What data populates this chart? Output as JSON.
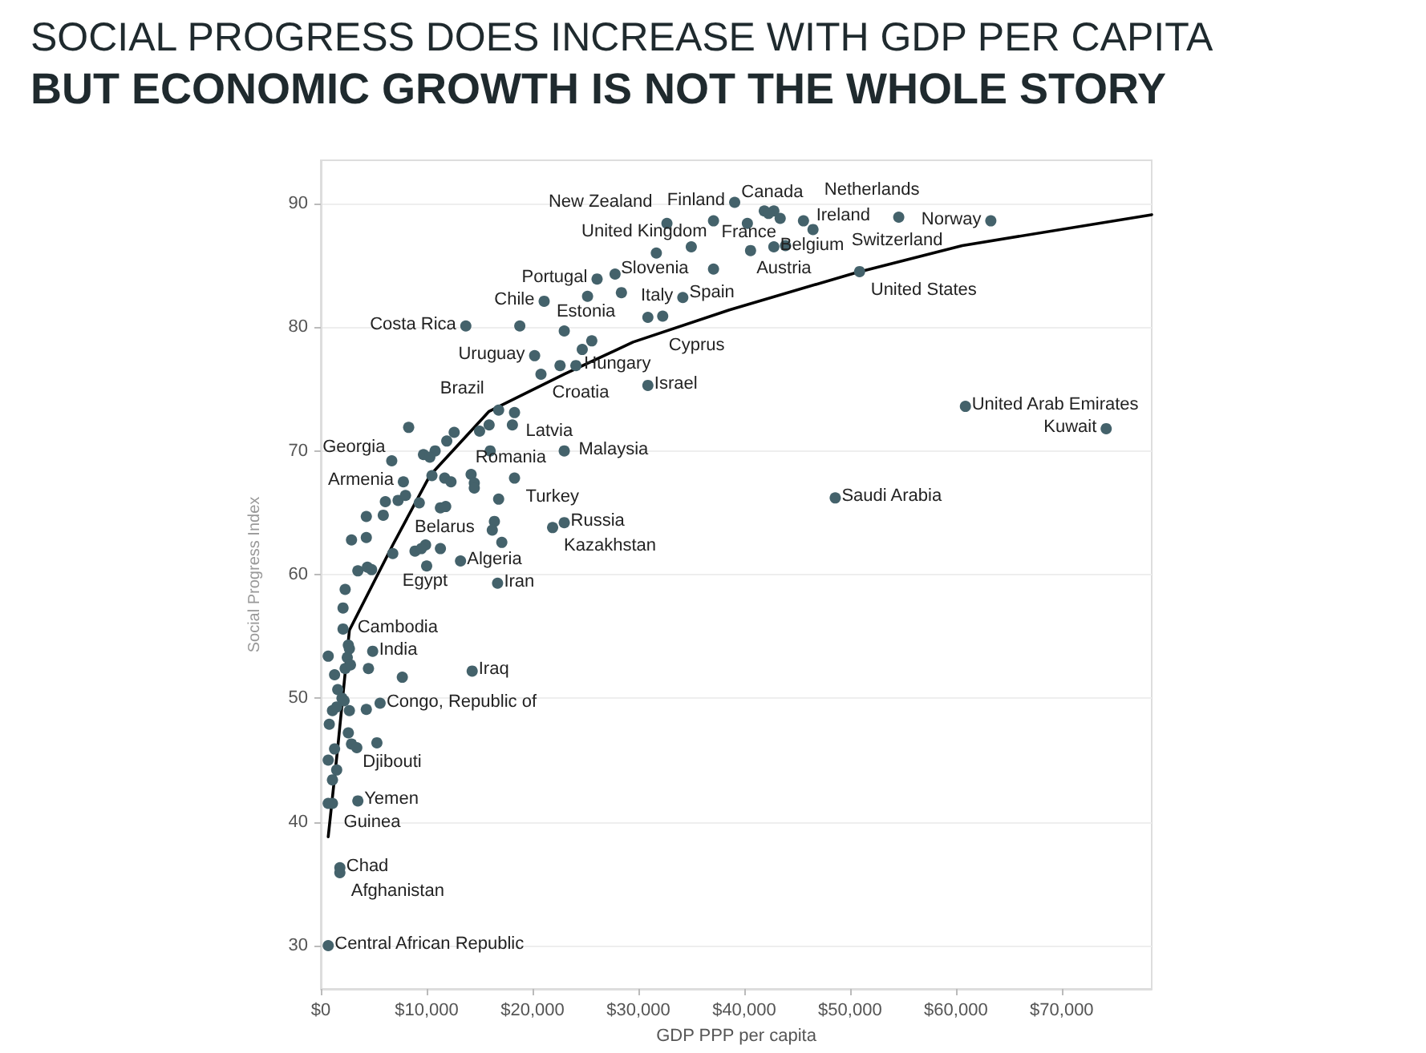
{
  "chart_data": {
    "type": "scatter",
    "title": "SOCIAL PROGRESS DOES INCREASE WITH GDP PER CAPITA",
    "subtitle": "BUT ECONOMIC GROWTH IS NOT THE WHOLE STORY",
    "xlabel": "GDP PPP per capita",
    "ylabel": "Social Progress Index",
    "xlim": [
      0,
      78500
    ],
    "ylim": [
      26.5,
      93.5
    ],
    "xticks": [
      {
        "value": 0,
        "label": "$0"
      },
      {
        "value": 10000,
        "label": "$10,000"
      },
      {
        "value": 20000,
        "label": "$20,000"
      },
      {
        "value": 30000,
        "label": "$30,000"
      },
      {
        "value": 40000,
        "label": "$40,000"
      },
      {
        "value": 50000,
        "label": "$50,000"
      },
      {
        "value": 60000,
        "label": "$60,000"
      },
      {
        "value": 70000,
        "label": "$70,000"
      }
    ],
    "yticks": [
      30,
      40,
      50,
      60,
      70,
      80,
      90
    ],
    "grid": "y",
    "marker": "circle",
    "series": [
      {
        "color": "#44626b",
        "x": [
          39100,
          42800,
          37100,
          45600,
          63300,
          32700,
          54600,
          31700,
          43900,
          46500,
          37100,
          42800,
          40600,
          26100,
          34200,
          21100,
          50900,
          25200,
          13700,
          30900,
          20200,
          20800,
          22600,
          30900,
          18300,
          16800,
          18100,
          60900,
          6700,
          23000,
          74200,
          18300,
          7800,
          16800,
          48600,
          23000,
          21900,
          13200,
          10000,
          16700,
          2100,
          4900,
          14300,
          5600,
          2900,
          3500,
          1100,
          1800,
          1800,
          700,
          35000,
          27800,
          28400,
          32300,
          18800,
          23000,
          25600,
          24700,
          24100,
          15900,
          15000,
          8300,
          12600,
          11900,
          10800,
          9700,
          10300,
          16000,
          10500,
          11700,
          12300,
          14200,
          14500,
          14500,
          6100,
          7300,
          8000,
          9300,
          11300,
          11800,
          4300,
          5900,
          16400,
          16200,
          17100,
          2900,
          4300,
          6800,
          8900,
          9900,
          9500,
          11300,
          3500,
          4400,
          4800,
          2300,
          2100,
          2600,
          2700,
          700,
          2500,
          4500,
          2300,
          2800,
          7700,
          1300,
          1600,
          2000,
          2200,
          4300,
          2700,
          1100,
          1500,
          800,
          2600,
          1300,
          3400,
          5300,
          700,
          1500,
          1100,
          700,
          41900,
          42300,
          43400,
          40300
        ],
        "values": [
          90.1,
          89.4,
          88.6,
          88.6,
          88.6,
          88.4,
          88.9,
          86.0,
          86.6,
          87.9,
          84.7,
          86.5,
          86.2,
          83.9,
          82.4,
          82.1,
          84.5,
          82.5,
          80.1,
          80.8,
          77.7,
          76.2,
          76.9,
          75.3,
          73.1,
          73.3,
          72.1,
          73.6,
          69.2,
          70.0,
          71.8,
          67.8,
          67.5,
          66.1,
          66.2,
          64.2,
          63.8,
          61.1,
          60.7,
          59.3,
          55.6,
          53.8,
          52.2,
          49.6,
          46.3,
          41.7,
          41.5,
          36.3,
          35.9,
          30.0,
          86.5,
          84.3,
          82.8,
          80.9,
          80.1,
          79.7,
          78.9,
          78.2,
          76.9,
          72.1,
          71.6,
          71.9,
          71.5,
          70.8,
          70.0,
          69.7,
          69.5,
          70.0,
          68.0,
          67.8,
          67.5,
          68.1,
          67.4,
          67.0,
          65.9,
          66.0,
          66.4,
          65.8,
          65.4,
          65.5,
          64.7,
          64.8,
          64.3,
          63.6,
          62.6,
          62.8,
          63.0,
          61.7,
          61.9,
          62.4,
          62.1,
          62.1,
          60.3,
          60.6,
          60.4,
          58.8,
          57.3,
          54.3,
          54.0,
          53.4,
          53.3,
          52.4,
          52.4,
          52.7,
          51.7,
          51.9,
          50.7,
          50.0,
          49.8,
          49.1,
          49.0,
          49.0,
          49.3,
          47.9,
          47.2,
          45.9,
          46.0,
          46.4,
          45.0,
          44.2,
          43.4,
          41.5,
          89.4,
          89.2,
          88.8,
          88.4
        ],
        "value_labels": [
          "Finland",
          "Canada",
          "United Kingdom",
          "Netherlands",
          "Norway",
          "New Zealand",
          "Switzerland",
          "Slovenia",
          "Austria",
          "Ireland",
          "Spain",
          "Belgium",
          "France",
          "Portugal",
          "Italy",
          "Chile",
          "United States",
          "Estonia",
          "Costa Rica",
          "Cyprus",
          "Uruguay",
          "Croatia",
          "Hungary",
          "Israel",
          "Latvia",
          "Brazil",
          "Romania",
          "United Arab Emirates",
          "Georgia",
          "Malaysia",
          "Kuwait",
          "Turkey",
          "Armenia",
          "Belarus",
          "Saudi Arabia",
          "Russia",
          "Kazakhstan",
          "Algeria",
          "Egypt",
          "Iran",
          "Cambodia",
          "India",
          "Iraq",
          "Congo, Republic of",
          "Djibouti",
          "Yemen",
          "Guinea",
          "Chad",
          "Afghanistan",
          "Central African Republic",
          null,
          null,
          null,
          null,
          null,
          null,
          null,
          null,
          null,
          null,
          null,
          null,
          null,
          null,
          null,
          null,
          null,
          null,
          null,
          null,
          null,
          null,
          null,
          null,
          null,
          null,
          null,
          null,
          null,
          null,
          null,
          null,
          null,
          null,
          null,
          null,
          null,
          null,
          null,
          null,
          null,
          null,
          null,
          null,
          null,
          null,
          null,
          null,
          null,
          null,
          null,
          null,
          null,
          null,
          null,
          null,
          null,
          null,
          null,
          null,
          null,
          null,
          null,
          null,
          null,
          null,
          null,
          null,
          null,
          null,
          null,
          null,
          null,
          null,
          null,
          null
        ]
      },
      {
        "type": "line",
        "color": "#000000",
        "marker": "none",
        "x": [
          700,
          1600,
          2700,
          6800,
          10300,
          15900,
          23000,
          29500,
          38600,
          50500,
          60600,
          78500
        ],
        "values": [
          38.8,
          46.0,
          55.5,
          62.4,
          68.0,
          73.2,
          76.2,
          78.8,
          81.4,
          84.4,
          86.6,
          89.1
        ]
      }
    ]
  }
}
